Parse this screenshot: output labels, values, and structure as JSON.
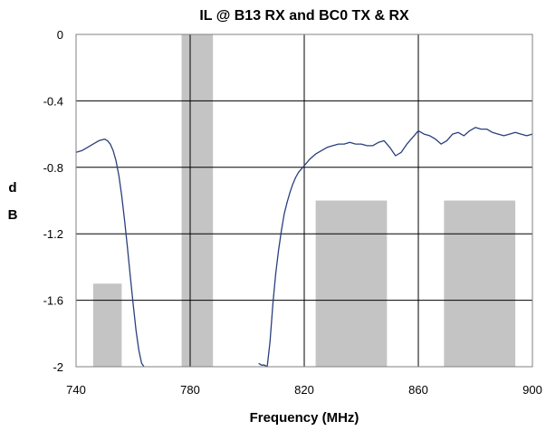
{
  "chart_data": {
    "type": "line",
    "title": "IL @ B13 RX and BC0 TX & RX",
    "xlabel": "Frequency (MHz)",
    "ylabel_lines": [
      "d",
      "B"
    ],
    "xlim": [
      740,
      900
    ],
    "ylim": [
      -2,
      0
    ],
    "xticks": [
      "740",
      "780",
      "820",
      "860",
      "900"
    ],
    "xtick_values": [
      740,
      780,
      820,
      860,
      900
    ],
    "yticks": [
      "0",
      "-0.4",
      "-0.8",
      "-1.2",
      "-1.6",
      "-2"
    ],
    "ytick_values": [
      0,
      -0.4,
      -0.8,
      -1.2,
      -1.6,
      -2
    ],
    "grid": true,
    "line_color": "#2b3f7c",
    "bar_color": "#c4c4c4",
    "mask_bars": [
      {
        "x0": 746,
        "x1": 756,
        "top": -1.5
      },
      {
        "x0": 777,
        "x1": 788,
        "top": 0
      },
      {
        "x0": 824,
        "x1": 849,
        "top": -1.0
      },
      {
        "x0": 869,
        "x1": 894,
        "top": -1.0
      }
    ],
    "series": [
      {
        "segments": [
          {
            "x": [
              740,
              742,
              744,
              746,
              748,
              750,
              751,
              752,
              753,
              754,
              755,
              756,
              757,
              758,
              759,
              760,
              761,
              762,
              763,
              763.8
            ],
            "y": [
              -0.71,
              -0.7,
              -0.68,
              -0.66,
              -0.64,
              -0.63,
              -0.64,
              -0.66,
              -0.7,
              -0.76,
              -0.85,
              -0.97,
              -1.12,
              -1.28,
              -1.45,
              -1.62,
              -1.78,
              -1.9,
              -1.98,
              -2.0
            ]
          },
          {
            "x": [
              804,
              805,
              806,
              807,
              808,
              809,
              810,
              811,
              812,
              813,
              814,
              815,
              816,
              817,
              818,
              819,
              820,
              822,
              824,
              826,
              828,
              830,
              832,
              834,
              836,
              838,
              840,
              842,
              844,
              846,
              848,
              850,
              852,
              854,
              856,
              858,
              860,
              862,
              864,
              866,
              868,
              870,
              872,
              874,
              876,
              878,
              880,
              882,
              884,
              886,
              888,
              890,
              892,
              894,
              896,
              898,
              900
            ],
            "y": [
              -1.98,
              -1.99,
              -1.99,
              -2.0,
              -1.85,
              -1.62,
              -1.44,
              -1.3,
              -1.18,
              -1.08,
              -1.01,
              -0.95,
              -0.9,
              -0.86,
              -0.83,
              -0.81,
              -0.79,
              -0.75,
              -0.72,
              -0.7,
              -0.68,
              -0.67,
              -0.66,
              -0.66,
              -0.65,
              -0.66,
              -0.66,
              -0.67,
              -0.67,
              -0.65,
              -0.64,
              -0.68,
              -0.73,
              -0.71,
              -0.66,
              -0.62,
              -0.58,
              -0.6,
              -0.61,
              -0.63,
              -0.66,
              -0.64,
              -0.6,
              -0.59,
              -0.61,
              -0.58,
              -0.56,
              -0.57,
              -0.57,
              -0.59,
              -0.6,
              -0.61,
              -0.6,
              -0.59,
              -0.6,
              -0.61,
              -0.6
            ]
          }
        ]
      }
    ]
  }
}
